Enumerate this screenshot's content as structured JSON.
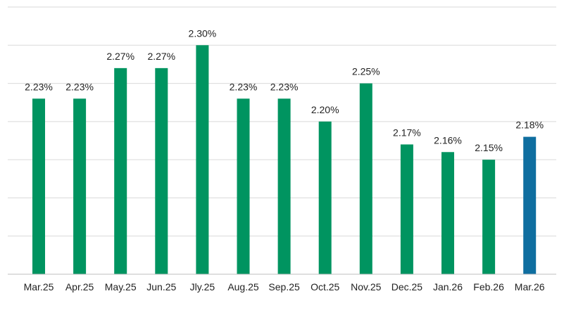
{
  "chart_data": {
    "type": "bar",
    "categories": [
      "Mar.25",
      "Apr.25",
      "May.25",
      "Jun.25",
      "Jly.25",
      "Aug.25",
      "Sep.25",
      "Oct.25",
      "Nov.25",
      "Dec.25",
      "Jan.26",
      "Feb.26",
      "Mar.26"
    ],
    "values": [
      2.23,
      2.23,
      2.27,
      2.27,
      2.3,
      2.23,
      2.23,
      2.2,
      2.25,
      2.17,
      2.16,
      2.15,
      2.18
    ],
    "data_labels": [
      "2.23%",
      "2.23%",
      "2.27%",
      "2.27%",
      "2.30%",
      "2.23%",
      "2.23%",
      "2.20%",
      "2.25%",
      "2.17%",
      "2.16%",
      "2.15%",
      "2.18%"
    ],
    "ylim": [
      2.0,
      2.35
    ],
    "gridlines": [
      2.05,
      2.1,
      2.15,
      2.2,
      2.25,
      2.3,
      2.35
    ],
    "grid": true,
    "y_tick_labels_shown": false,
    "title": "",
    "xlabel": "",
    "ylabel": "",
    "colors": {
      "default_bar": "#009460",
      "highlight_bar": "#0F6EA0",
      "gridline": "#d9d9d9",
      "text": "#222222"
    },
    "highlight_index": 12
  }
}
